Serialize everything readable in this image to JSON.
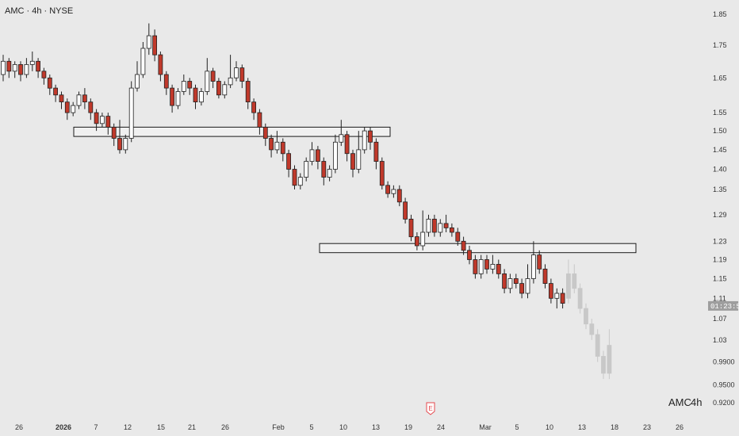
{
  "header": {
    "title": "AMC · 4h · NYSE"
  },
  "watermark": {
    "symbol": "AMC",
    "interval": "4h"
  },
  "price_tag": {
    "text": "01:23:58",
    "value": 1.095,
    "bg_color": "#9e9e9e"
  },
  "earnings_marker": {
    "label": "E",
    "x_label": "23",
    "color": "#e5484d"
  },
  "colors": {
    "background": "#e9e9e9",
    "up_body": "#ffffff",
    "down_body": "#c0392b",
    "wick": "#222222",
    "projection": "#c8c8c8",
    "zone_stroke": "#1a1a1a",
    "axis_text": "#333333"
  },
  "chart_data": {
    "type": "candlestick",
    "log_scale": true,
    "grid": false,
    "y_ticks": [
      {
        "label": "1.85",
        "value": 1.85
      },
      {
        "label": "1.75",
        "value": 1.75
      },
      {
        "label": "1.65",
        "value": 1.65
      },
      {
        "label": "1.55",
        "value": 1.55
      },
      {
        "label": "1.50",
        "value": 1.5
      },
      {
        "label": "1.45",
        "value": 1.45
      },
      {
        "label": "1.40",
        "value": 1.4
      },
      {
        "label": "1.35",
        "value": 1.35
      },
      {
        "label": "1.29",
        "value": 1.29
      },
      {
        "label": "1.23",
        "value": 1.23
      },
      {
        "label": "1.19",
        "value": 1.19
      },
      {
        "label": "1.15",
        "value": 1.15
      },
      {
        "label": "1.11",
        "value": 1.11
      },
      {
        "label": "1.07",
        "value": 1.07
      },
      {
        "label": "1.03",
        "value": 1.03
      },
      {
        "label": "0.9900",
        "value": 0.99
      },
      {
        "label": "0.9500",
        "value": 0.95
      },
      {
        "label": "0.9200",
        "value": 0.92
      }
    ],
    "x_ticks": [
      "26",
      "2026",
      "7",
      "12",
      "15",
      "21",
      "26",
      "Feb",
      "5",
      "10",
      "13",
      "19",
      "24",
      "Mar",
      "5",
      "10",
      "13",
      "18",
      "23",
      "26"
    ],
    "zones": [
      {
        "name": "upper-resistance-zone",
        "x_from": "2026",
        "x_to": "13",
        "y_low": 1.485,
        "y_high": 1.51
      },
      {
        "name": "lower-support-zone",
        "x_from": "10",
        "x_to": "23",
        "y_low": 1.205,
        "y_high": 1.225
      }
    ],
    "candles": [
      [
        1.66,
        1.7,
        1.72,
        1.64
      ],
      [
        1.7,
        1.67,
        1.71,
        1.65
      ],
      [
        1.67,
        1.69,
        1.7,
        1.65
      ],
      [
        1.69,
        1.66,
        1.7,
        1.64
      ],
      [
        1.66,
        1.69,
        1.71,
        1.65
      ],
      [
        1.69,
        1.7,
        1.73,
        1.67
      ],
      [
        1.7,
        1.67,
        1.71,
        1.65
      ],
      [
        1.67,
        1.65,
        1.68,
        1.63
      ],
      [
        1.65,
        1.62,
        1.66,
        1.6
      ],
      [
        1.62,
        1.6,
        1.63,
        1.58
      ],
      [
        1.6,
        1.58,
        1.61,
        1.56
      ],
      [
        1.58,
        1.55,
        1.59,
        1.53
      ],
      [
        1.55,
        1.57,
        1.58,
        1.54
      ],
      [
        1.57,
        1.6,
        1.61,
        1.56
      ],
      [
        1.6,
        1.58,
        1.62,
        1.56
      ],
      [
        1.58,
        1.55,
        1.59,
        1.53
      ],
      [
        1.55,
        1.52,
        1.56,
        1.5
      ],
      [
        1.52,
        1.54,
        1.55,
        1.51
      ],
      [
        1.54,
        1.51,
        1.55,
        1.49
      ],
      [
        1.51,
        1.48,
        1.52,
        1.46
      ],
      [
        1.48,
        1.45,
        1.53,
        1.44
      ],
      [
        1.45,
        1.48,
        1.49,
        1.44
      ],
      [
        1.48,
        1.62,
        1.64,
        1.47
      ],
      [
        1.62,
        1.66,
        1.7,
        1.61
      ],
      [
        1.66,
        1.74,
        1.76,
        1.65
      ],
      [
        1.74,
        1.78,
        1.82,
        1.72
      ],
      [
        1.78,
        1.72,
        1.8,
        1.7
      ],
      [
        1.72,
        1.66,
        1.73,
        1.64
      ],
      [
        1.66,
        1.62,
        1.67,
        1.6
      ],
      [
        1.62,
        1.57,
        1.63,
        1.55
      ],
      [
        1.57,
        1.61,
        1.62,
        1.56
      ],
      [
        1.61,
        1.64,
        1.66,
        1.6
      ],
      [
        1.64,
        1.62,
        1.65,
        1.6
      ],
      [
        1.62,
        1.58,
        1.63,
        1.56
      ],
      [
        1.58,
        1.61,
        1.62,
        1.57
      ],
      [
        1.61,
        1.67,
        1.71,
        1.6
      ],
      [
        1.67,
        1.64,
        1.68,
        1.62
      ],
      [
        1.64,
        1.6,
        1.65,
        1.59
      ],
      [
        1.6,
        1.63,
        1.64,
        1.59
      ],
      [
        1.63,
        1.65,
        1.72,
        1.62
      ],
      [
        1.65,
        1.68,
        1.7,
        1.64
      ],
      [
        1.68,
        1.64,
        1.69,
        1.62
      ],
      [
        1.64,
        1.58,
        1.65,
        1.56
      ],
      [
        1.58,
        1.55,
        1.59,
        1.53
      ],
      [
        1.55,
        1.51,
        1.56,
        1.49
      ],
      [
        1.51,
        1.48,
        1.52,
        1.46
      ],
      [
        1.48,
        1.45,
        1.49,
        1.43
      ],
      [
        1.45,
        1.47,
        1.5,
        1.44
      ],
      [
        1.47,
        1.44,
        1.48,
        1.42
      ],
      [
        1.44,
        1.4,
        1.45,
        1.38
      ],
      [
        1.4,
        1.36,
        1.41,
        1.35
      ],
      [
        1.36,
        1.38,
        1.39,
        1.35
      ],
      [
        1.38,
        1.42,
        1.43,
        1.37
      ],
      [
        1.42,
        1.45,
        1.47,
        1.41
      ],
      [
        1.45,
        1.42,
        1.46,
        1.4
      ],
      [
        1.42,
        1.38,
        1.43,
        1.36
      ],
      [
        1.38,
        1.4,
        1.41,
        1.37
      ],
      [
        1.4,
        1.47,
        1.49,
        1.39
      ],
      [
        1.47,
        1.49,
        1.53,
        1.46
      ],
      [
        1.49,
        1.44,
        1.5,
        1.42
      ],
      [
        1.44,
        1.4,
        1.45,
        1.38
      ],
      [
        1.4,
        1.45,
        1.5,
        1.39
      ],
      [
        1.45,
        1.5,
        1.51,
        1.44
      ],
      [
        1.5,
        1.47,
        1.51,
        1.45
      ],
      [
        1.47,
        1.42,
        1.48,
        1.4
      ],
      [
        1.42,
        1.36,
        1.43,
        1.35
      ],
      [
        1.36,
        1.34,
        1.37,
        1.33
      ],
      [
        1.34,
        1.35,
        1.36,
        1.33
      ],
      [
        1.35,
        1.32,
        1.36,
        1.31
      ],
      [
        1.32,
        1.28,
        1.33,
        1.27
      ],
      [
        1.28,
        1.24,
        1.29,
        1.23
      ],
      [
        1.24,
        1.22,
        1.25,
        1.21
      ],
      [
        1.22,
        1.25,
        1.3,
        1.21
      ],
      [
        1.25,
        1.28,
        1.29,
        1.24
      ],
      [
        1.28,
        1.25,
        1.29,
        1.24
      ],
      [
        1.25,
        1.27,
        1.28,
        1.24
      ],
      [
        1.27,
        1.26,
        1.29,
        1.25
      ],
      [
        1.26,
        1.25,
        1.27,
        1.24
      ],
      [
        1.25,
        1.23,
        1.26,
        1.22
      ],
      [
        1.23,
        1.21,
        1.24,
        1.2
      ],
      [
        1.21,
        1.19,
        1.22,
        1.18
      ],
      [
        1.19,
        1.16,
        1.2,
        1.15
      ],
      [
        1.16,
        1.19,
        1.2,
        1.15
      ],
      [
        1.19,
        1.17,
        1.2,
        1.16
      ],
      [
        1.17,
        1.18,
        1.2,
        1.16
      ],
      [
        1.18,
        1.16,
        1.19,
        1.15
      ],
      [
        1.16,
        1.13,
        1.17,
        1.12
      ],
      [
        1.13,
        1.15,
        1.16,
        1.12
      ],
      [
        1.15,
        1.14,
        1.16,
        1.13
      ],
      [
        1.14,
        1.12,
        1.15,
        1.11
      ],
      [
        1.12,
        1.15,
        1.18,
        1.11
      ],
      [
        1.15,
        1.2,
        1.23,
        1.14
      ],
      [
        1.2,
        1.17,
        1.21,
        1.16
      ],
      [
        1.17,
        1.14,
        1.18,
        1.13
      ],
      [
        1.14,
        1.11,
        1.15,
        1.1
      ],
      [
        1.11,
        1.12,
        1.13,
        1.09
      ],
      [
        1.12,
        1.1,
        1.13,
        1.09
      ]
    ],
    "projection": [
      [
        1.11,
        1.16,
        1.19,
        1.1
      ],
      [
        1.16,
        1.13,
        1.18,
        1.12
      ],
      [
        1.13,
        1.09,
        1.14,
        1.08
      ],
      [
        1.09,
        1.06,
        1.1,
        1.05
      ],
      [
        1.06,
        1.04,
        1.07,
        1.03
      ],
      [
        1.04,
        1.0,
        1.05,
        0.99
      ],
      [
        1.0,
        0.97,
        1.01,
        0.96
      ],
      [
        0.97,
        1.02,
        1.05,
        0.96
      ]
    ]
  }
}
